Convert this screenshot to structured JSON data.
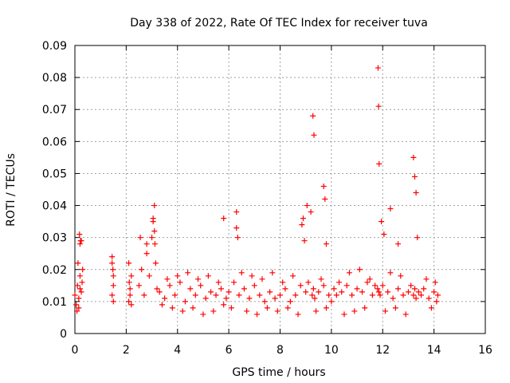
{
  "chart_data": {
    "type": "scatter",
    "title": "Day 338 of 2022, Rate Of TEC Index for receiver tuva",
    "xlabel": "GPS time / hours",
    "ylabel": "ROTI / TECUs",
    "xlim": [
      0,
      16
    ],
    "ylim": [
      0,
      0.09
    ],
    "x_ticks": [
      "0",
      "2",
      "4",
      "6",
      "8",
      "10",
      "12",
      "14",
      "16"
    ],
    "y_ticks": [
      "0",
      "0.01",
      "0.02",
      "0.03",
      "0.04",
      "0.05",
      "0.06",
      "0.07",
      "0.08",
      "0.09"
    ],
    "grid": true,
    "marker": "+",
    "marker_color": "#ff0000",
    "series": [
      {
        "x": [
          0.0,
          0.05,
          0.1,
          0.15,
          0.2,
          0.25,
          0.3,
          0.08,
          0.12,
          0.18,
          0.22,
          0.28,
          0.15,
          0.2,
          1.45,
          1.5,
          1.45,
          1.5,
          1.45,
          1.5,
          1.48,
          2.1,
          2.15,
          2.2,
          2.1,
          2.15,
          2.2,
          2.12,
          2.5,
          2.6,
          2.7,
          2.8,
          2.9,
          3.0,
          3.05,
          3.1,
          3.15,
          3.2,
          3.3,
          3.5,
          3.7,
          3.9,
          4.1,
          4.3,
          4.5,
          4.7,
          4.9,
          5.1,
          5.3,
          5.5,
          5.7,
          5.9,
          6.0,
          6.2,
          6.3,
          6.4,
          6.6,
          6.8,
          7.0,
          7.2,
          7.4,
          7.6,
          7.8,
          8.0,
          8.2,
          8.4,
          8.6,
          8.8,
          8.9,
          9.0,
          9.1,
          9.2,
          9.25,
          9.3,
          9.35,
          9.5,
          9.7,
          9.9,
          10.0,
          10.1,
          10.2,
          10.3,
          10.4,
          10.6,
          10.8,
          11.0,
          11.2,
          11.4,
          11.6,
          11.7,
          11.8,
          11.85,
          11.9,
          12.0,
          12.2,
          12.4,
          12.6,
          12.8,
          13.0,
          13.1,
          13.2,
          13.25,
          13.3,
          13.4,
          13.5,
          13.6,
          13.8,
          14.0,
          14.1,
          14.15,
          3.4,
          3.6,
          3.8,
          4.0,
          4.2,
          4.4,
          4.6,
          4.8,
          5.0,
          5.2,
          5.4,
          5.6,
          5.8,
          6.1,
          6.5,
          6.7,
          6.9,
          7.1,
          7.3,
          7.5,
          7.7,
          7.9,
          8.1,
          8.3,
          8.5,
          8.7,
          9.4,
          9.6,
          9.8,
          10.5,
          10.7,
          10.9,
          11.1,
          11.3,
          11.5,
          12.1,
          12.3,
          12.5,
          12.7,
          12.9,
          13.7,
          13.9,
          14.05,
          8.85,
          8.95,
          9.05,
          9.28,
          9.32,
          9.7,
          9.75,
          9.8,
          11.82,
          11.84,
          11.86,
          11.95,
          12.05,
          12.3,
          12.6,
          13.2,
          13.25,
          13.3,
          13.35,
          6.3,
          6.35,
          5.8,
          3.05,
          3.1,
          3.12,
          2.55,
          2.8,
          0.2,
          0.25
        ],
        "y": [
          0.012,
          0.009,
          0.015,
          0.011,
          0.018,
          0.013,
          0.02,
          0.007,
          0.022,
          0.031,
          0.029,
          0.016,
          0.008,
          0.014,
          0.012,
          0.018,
          0.022,
          0.01,
          0.024,
          0.015,
          0.02,
          0.01,
          0.014,
          0.018,
          0.022,
          0.012,
          0.009,
          0.016,
          0.015,
          0.02,
          0.012,
          0.025,
          0.018,
          0.03,
          0.035,
          0.04,
          0.022,
          0.014,
          0.013,
          0.011,
          0.015,
          0.012,
          0.016,
          0.01,
          0.014,
          0.012,
          0.015,
          0.011,
          0.013,
          0.012,
          0.014,
          0.011,
          0.013,
          0.016,
          0.033,
          0.012,
          0.014,
          0.011,
          0.015,
          0.012,
          0.01,
          0.013,
          0.011,
          0.012,
          0.014,
          0.01,
          0.012,
          0.015,
          0.036,
          0.013,
          0.016,
          0.038,
          0.012,
          0.014,
          0.011,
          0.013,
          0.015,
          0.012,
          0.01,
          0.014,
          0.012,
          0.016,
          0.013,
          0.015,
          0.012,
          0.014,
          0.013,
          0.016,
          0.012,
          0.015,
          0.014,
          0.013,
          0.012,
          0.015,
          0.013,
          0.011,
          0.014,
          0.012,
          0.013,
          0.015,
          0.012,
          0.014,
          0.011,
          0.013,
          0.012,
          0.014,
          0.011,
          0.013,
          0.01,
          0.012,
          0.009,
          0.017,
          0.008,
          0.018,
          0.007,
          0.019,
          0.008,
          0.017,
          0.006,
          0.018,
          0.007,
          0.016,
          0.009,
          0.008,
          0.019,
          0.007,
          0.018,
          0.006,
          0.017,
          0.008,
          0.019,
          0.007,
          0.016,
          0.008,
          0.018,
          0.006,
          0.007,
          0.017,
          0.008,
          0.006,
          0.019,
          0.007,
          0.02,
          0.008,
          0.017,
          0.007,
          0.019,
          0.008,
          0.018,
          0.006,
          0.017,
          0.008,
          0.016,
          0.034,
          0.029,
          0.04,
          0.068,
          0.062,
          0.046,
          0.042,
          0.028,
          0.083,
          0.071,
          0.053,
          0.035,
          0.031,
          0.039,
          0.028,
          0.055,
          0.049,
          0.044,
          0.03,
          0.038,
          0.03,
          0.036,
          0.036,
          0.032,
          0.028,
          0.03,
          0.028,
          0.028,
          0.029
        ]
      }
    ]
  }
}
